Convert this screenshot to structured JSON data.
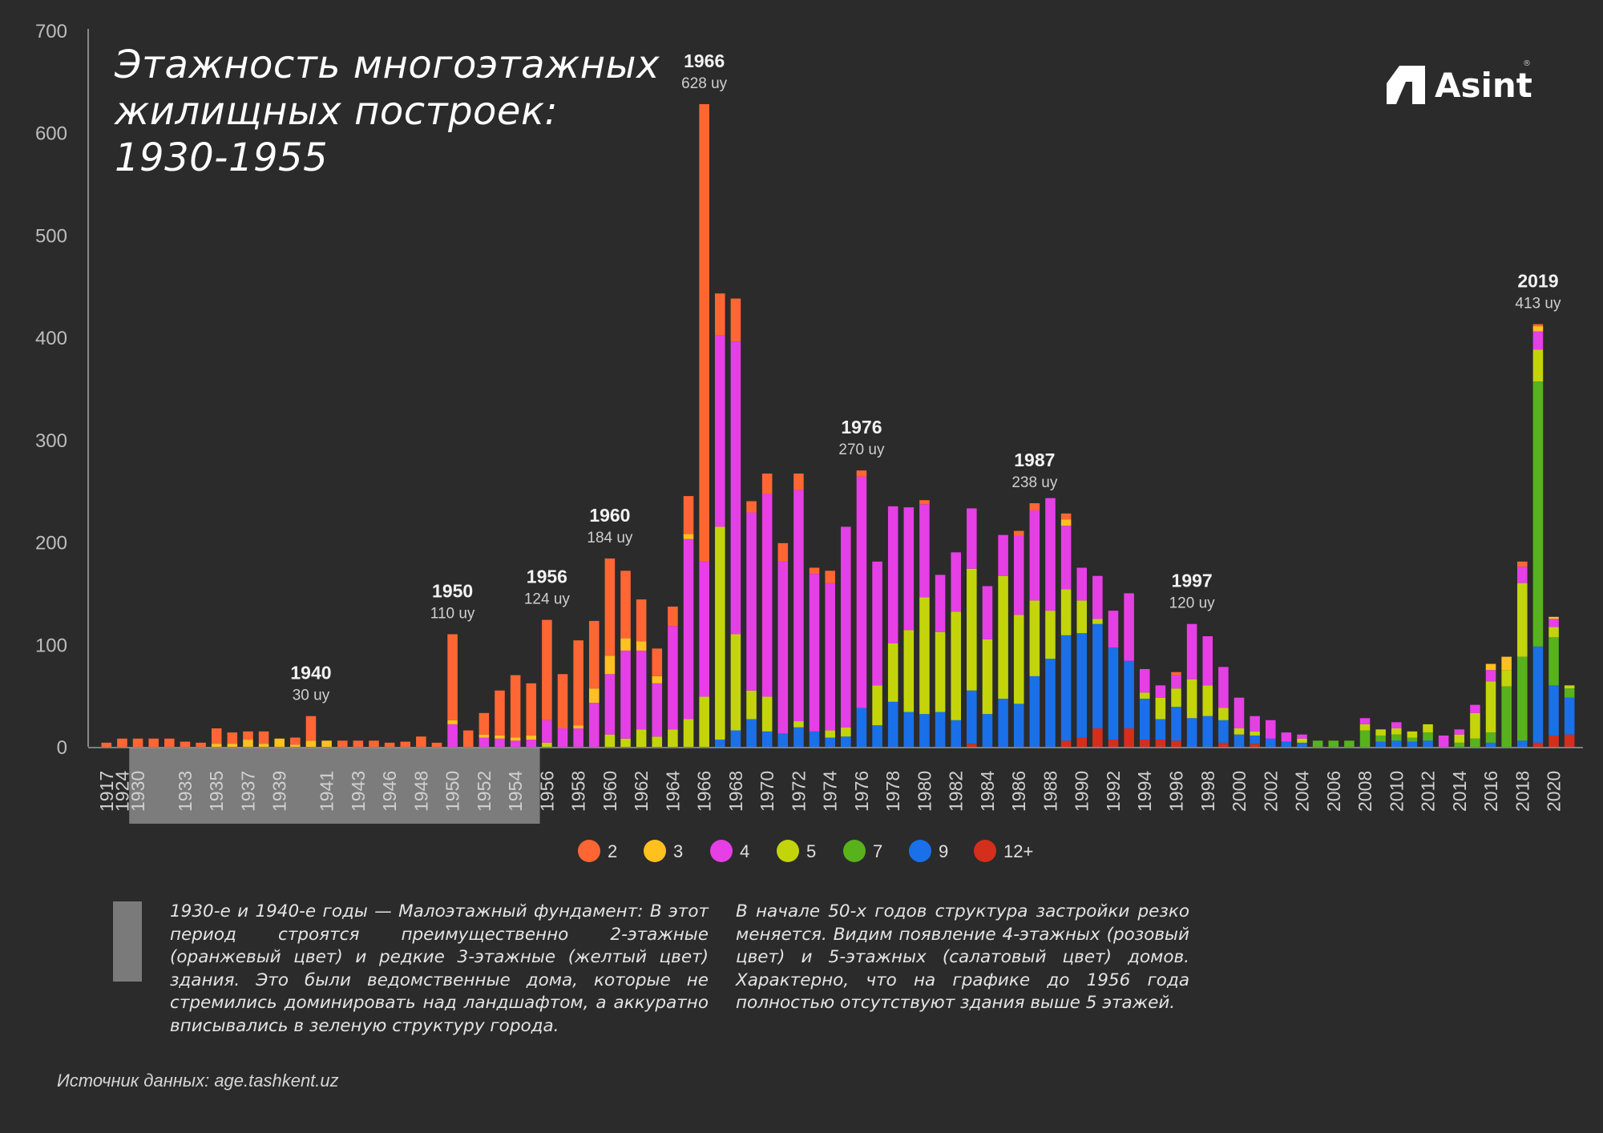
{
  "title_lines": [
    "Этажность многоэтажных",
    "жилищных построек:",
    "1930-1955"
  ],
  "logo": {
    "text": "Asint",
    "registered": "®"
  },
  "note_left": "1930-е и 1940-е годы — Малоэтажный фундамент: В этот период строятся преимущественно 2-этажные (оранжевый цвет) и редкие 3-этажные (желтый цвет) здания. Это были ведомственные дома, которые не стремились доминировать над ландшафтом, а аккуратно вписывались в зеленую структуру города.",
  "note_right": "В начале 50-х годов структура застройки резко меняется. Видим появление 4-этажных (розовый цвет) и 5-этажных (салатовый цвет) домов. Характерно, что на графике до 1956 года полностью отсутствуют здания выше 5 этажей.",
  "source": "Источник данных: age.tashkent.uz",
  "chart_data": {
    "type": "bar",
    "stacked": true,
    "ylim": [
      0,
      700
    ],
    "yticks": [
      0,
      100,
      200,
      300,
      400,
      500,
      600,
      700
    ],
    "highlight_range": [
      "1930",
      "1955"
    ],
    "colors": {
      "2": "#ff6633",
      "3": "#ffc020",
      "4": "#e63fe6",
      "5": "#c4d40a",
      "7": "#58b21c",
      "9": "#1a70e8",
      "12+": "#d42f1c"
    },
    "series_order": [
      "12+",
      "9",
      "7",
      "5",
      "4",
      "3",
      "2"
    ],
    "legend": [
      "2",
      "3",
      "4",
      "5",
      "7",
      "9",
      "12+"
    ],
    "bars": [
      {
        "year": "1917",
        "v": {
          "2": 4
        }
      },
      {
        "year": "1924",
        "v": {
          "2": 8
        }
      },
      {
        "year": "1930",
        "v": {
          "2": 8
        }
      },
      {
        "year": "1931",
        "v": {
          "2": 8
        }
      },
      {
        "year": "1932",
        "v": {
          "2": 8
        }
      },
      {
        "year": "1933",
        "v": {
          "2": 5
        }
      },
      {
        "year": "1934",
        "v": {
          "2": 4
        }
      },
      {
        "year": "1935",
        "v": {
          "3": 3,
          "2": 15
        }
      },
      {
        "year": "1936",
        "v": {
          "3": 3,
          "2": 11
        }
      },
      {
        "year": "1937",
        "v": {
          "3": 7,
          "2": 8
        }
      },
      {
        "year": "1938",
        "v": {
          "3": 3,
          "2": 12
        }
      },
      {
        "year": "1939",
        "v": {
          "3": 8,
          "2": 0
        }
      },
      {
        "year": "1939",
        "v": {
          "3": 2,
          "2": 7
        }
      },
      {
        "year": "1940",
        "v": {
          "3": 6,
          "2": 24
        }
      },
      {
        "year": "1941",
        "v": {
          "3": 6
        }
      },
      {
        "year": "1942",
        "v": {
          "2": 6
        }
      },
      {
        "year": "1943",
        "v": {
          "2": 6
        }
      },
      {
        "year": "1944",
        "v": {
          "2": 6
        }
      },
      {
        "year": "1946",
        "v": {
          "2": 4
        }
      },
      {
        "year": "1947",
        "v": {
          "2": 5
        }
      },
      {
        "year": "1948",
        "v": {
          "2": 10
        }
      },
      {
        "year": "1949",
        "v": {
          "2": 4
        }
      },
      {
        "year": "1950",
        "v": {
          "4": 22,
          "3": 4,
          "2": 84
        }
      },
      {
        "year": "1951",
        "v": {
          "2": 16
        }
      },
      {
        "year": "1952",
        "v": {
          "4": 9,
          "3": 3,
          "2": 21
        }
      },
      {
        "year": "1953",
        "v": {
          "4": 8,
          "3": 3,
          "2": 44
        }
      },
      {
        "year": "1954",
        "v": {
          "4": 6,
          "3": 3,
          "2": 61
        }
      },
      {
        "year": "1955",
        "v": {
          "4": 7,
          "3": 4,
          "2": 51
        }
      },
      {
        "year": "1956",
        "v": {
          "5": 4,
          "4": 22,
          "2": 98
        }
      },
      {
        "year": "1957",
        "v": {
          "4": 18,
          "2": 53
        }
      },
      {
        "year": "1958",
        "v": {
          "4": 18,
          "3": 3,
          "2": 83
        }
      },
      {
        "year": "1959",
        "v": {
          "4": 43,
          "3": 14,
          "2": 66
        }
      },
      {
        "year": "1960",
        "v": {
          "5": 12,
          "4": 59,
          "3": 18,
          "2": 95
        }
      },
      {
        "year": "1961",
        "v": {
          "5": 8,
          "4": 86,
          "3": 12,
          "2": 66
        }
      },
      {
        "year": "1962",
        "v": {
          "5": 17,
          "4": 77,
          "3": 9,
          "2": 41
        }
      },
      {
        "year": "1963",
        "v": {
          "5": 10,
          "4": 52,
          "3": 7,
          "2": 27
        }
      },
      {
        "year": "1964",
        "v": {
          "5": 17,
          "4": 101,
          "2": 19
        }
      },
      {
        "year": "1965",
        "v": {
          "5": 27,
          "4": 176,
          "3": 5,
          "2": 37
        }
      },
      {
        "year": "1966",
        "v": {
          "5": 49,
          "4": 132,
          "2": 447
        }
      },
      {
        "year": "1967",
        "v": {
          "9": 7,
          "5": 208,
          "4": 187,
          "2": 41
        }
      },
      {
        "year": "1968",
        "v": {
          "9": 16,
          "5": 94,
          "4": 286,
          "2": 42
        }
      },
      {
        "year": "1969",
        "v": {
          "9": 27,
          "5": 28,
          "4": 174,
          "2": 11
        }
      },
      {
        "year": "1970",
        "v": {
          "9": 15,
          "5": 34,
          "4": 198,
          "2": 20
        }
      },
      {
        "year": "1971",
        "v": {
          "9": 13,
          "4": 168,
          "2": 18
        }
      },
      {
        "year": "1972",
        "v": {
          "9": 19,
          "5": 6,
          "4": 226,
          "2": 16
        }
      },
      {
        "year": "1973",
        "v": {
          "9": 15,
          "4": 154,
          "2": 6
        }
      },
      {
        "year": "1974",
        "v": {
          "9": 9,
          "5": 7,
          "4": 144,
          "2": 12
        }
      },
      {
        "year": "1975",
        "v": {
          "9": 10,
          "5": 9,
          "4": 196
        }
      },
      {
        "year": "1976",
        "v": {
          "9": 38,
          "4": 226,
          "2": 6
        }
      },
      {
        "year": "1977",
        "v": {
          "9": 21,
          "5": 39,
          "4": 121
        }
      },
      {
        "year": "1978",
        "v": {
          "9": 44,
          "5": 57,
          "4": 134
        }
      },
      {
        "year": "1979",
        "v": {
          "9": 34,
          "5": 80,
          "4": 120
        }
      },
      {
        "year": "1980",
        "v": {
          "9": 32,
          "5": 114,
          "4": 91,
          "2": 4
        }
      },
      {
        "year": "1981",
        "v": {
          "9": 34,
          "5": 78,
          "4": 56
        }
      },
      {
        "year": "1982",
        "v": {
          "9": 26,
          "5": 106,
          "4": 58
        }
      },
      {
        "year": "1983",
        "v": {
          "12+": 3,
          "9": 52,
          "5": 119,
          "4": 59
        }
      },
      {
        "year": "1984",
        "v": {
          "9": 32,
          "5": 73,
          "4": 52
        }
      },
      {
        "year": "1985",
        "v": {
          "9": 47,
          "5": 120,
          "4": 40
        }
      },
      {
        "year": "1986",
        "v": {
          "9": 42,
          "5": 87,
          "4": 77,
          "2": 5
        }
      },
      {
        "year": "1987",
        "v": {
          "9": 69,
          "5": 74,
          "4": 88,
          "2": 7
        }
      },
      {
        "year": "1988",
        "v": {
          "9": 86,
          "5": 47,
          "4": 110
        }
      },
      {
        "year": "1989",
        "v": {
          "12+": 6,
          "9": 103,
          "5": 45,
          "4": 62,
          "3": 6,
          "2": 6
        }
      },
      {
        "year": "1990",
        "v": {
          "12+": 9,
          "9": 102,
          "5": 32,
          "4": 32
        }
      },
      {
        "year": "1991",
        "v": {
          "12+": 18,
          "9": 102,
          "5": 5,
          "4": 42
        }
      },
      {
        "year": "1992",
        "v": {
          "12+": 7,
          "9": 90,
          "4": 36
        }
      },
      {
        "year": "1993",
        "v": {
          "12+": 18,
          "9": 66,
          "4": 66
        }
      },
      {
        "year": "1994",
        "v": {
          "12+": 7,
          "9": 40,
          "5": 6,
          "4": 23
        }
      },
      {
        "year": "1995",
        "v": {
          "12+": 7,
          "9": 20,
          "5": 21,
          "4": 12
        }
      },
      {
        "year": "1996",
        "v": {
          "12+": 6,
          "9": 33,
          "5": 18,
          "4": 13,
          "2": 3
        }
      },
      {
        "year": "1997",
        "v": {
          "9": 28,
          "5": 38,
          "4": 54
        }
      },
      {
        "year": "1998",
        "v": {
          "9": 30,
          "5": 30,
          "4": 48
        }
      },
      {
        "year": "1999",
        "v": {
          "12+": 4,
          "9": 22,
          "5": 12,
          "4": 40
        }
      },
      {
        "year": "2000",
        "v": {
          "9": 12,
          "5": 6,
          "4": 30
        }
      },
      {
        "year": "2001",
        "v": {
          "12+": 3,
          "9": 8,
          "5": 4,
          "4": 15
        }
      },
      {
        "year": "2002",
        "v": {
          "9": 8,
          "4": 18
        }
      },
      {
        "year": "2003",
        "v": {
          "9": 5,
          "4": 9
        }
      },
      {
        "year": "2004",
        "v": {
          "9": 4,
          "5": 4,
          "4": 4
        }
      },
      {
        "year": "2005",
        "v": {
          "7": 6
        }
      },
      {
        "year": "2006",
        "v": {
          "7": 6
        }
      },
      {
        "year": "2007",
        "v": {
          "7": 6
        }
      },
      {
        "year": "2008",
        "v": {
          "7": 16,
          "5": 6,
          "4": 6
        }
      },
      {
        "year": "2009",
        "v": {
          "9": 5,
          "7": 6,
          "5": 6
        }
      },
      {
        "year": "2010",
        "v": {
          "9": 6,
          "7": 6,
          "5": 6,
          "4": 6
        }
      },
      {
        "year": "2011",
        "v": {
          "9": 5,
          "7": 4,
          "5": 6
        }
      },
      {
        "year": "2012",
        "v": {
          "9": 6,
          "7": 8,
          "5": 8
        }
      },
      {
        "year": "2013",
        "v": {
          "4": 11
        }
      },
      {
        "year": "2014",
        "v": {
          "7": 4,
          "5": 8,
          "4": 5
        }
      },
      {
        "year": "2015",
        "v": {
          "7": 8,
          "5": 25,
          "4": 8
        }
      },
      {
        "year": "2016",
        "v": {
          "9": 4,
          "7": 10,
          "5": 50,
          "4": 11,
          "3": 6
        }
      },
      {
        "year": "2017",
        "v": {
          "7": 59,
          "5": 16,
          "3": 13
        }
      },
      {
        "year": "2018",
        "v": {
          "9": 6,
          "7": 82,
          "5": 72,
          "4": 16,
          "2": 5
        }
      },
      {
        "year": "2019",
        "v": {
          "12+": 4,
          "9": 94,
          "7": 259,
          "5": 31,
          "4": 18,
          "3": 5,
          "2": 2
        }
      },
      {
        "year": "2020",
        "v": {
          "12+": 11,
          "9": 49,
          "7": 47,
          "5": 10,
          "4": 8,
          "3": 2
        }
      },
      {
        "year": "2021",
        "v": {
          "12+": 12,
          "9": 36,
          "7": 9,
          "5": 3
        }
      }
    ],
    "x_tick_labels": [
      "1917",
      "1924",
      "1930",
      "1933",
      "1935",
      "1937",
      "1939",
      "1941",
      "1943",
      "1946",
      "1948",
      "1950",
      "1952",
      "1954",
      "1956",
      "1958",
      "1960",
      "1962",
      "1964",
      "1966",
      "1968",
      "1970",
      "1972",
      "1974",
      "1976",
      "1978",
      "1980",
      "1982",
      "1984",
      "1986",
      "1988",
      "1990",
      "1992",
      "1994",
      "1996",
      "1998",
      "2000",
      "2002",
      "2004",
      "2006",
      "2008",
      "2010",
      "2012",
      "2014",
      "2016",
      "2018",
      "2020"
    ],
    "annotations": [
      {
        "year": "1940",
        "label": "1940",
        "value": "30 uy"
      },
      {
        "year": "1950",
        "label": "1950",
        "value": "110 uy"
      },
      {
        "year": "1956",
        "label": "1956",
        "value": "124 uy"
      },
      {
        "year": "1960",
        "label": "1960",
        "value": "184 uy"
      },
      {
        "year": "1966",
        "label": "1966",
        "value": "628 uy"
      },
      {
        "year": "1976",
        "label": "1976",
        "value": "270 uy"
      },
      {
        "year": "1987",
        "label": "1987",
        "value": "238 uy"
      },
      {
        "year": "1997",
        "label": "1997",
        "value": "120 uy"
      },
      {
        "year": "2019",
        "label": "2019",
        "value": "413 uy"
      }
    ]
  }
}
